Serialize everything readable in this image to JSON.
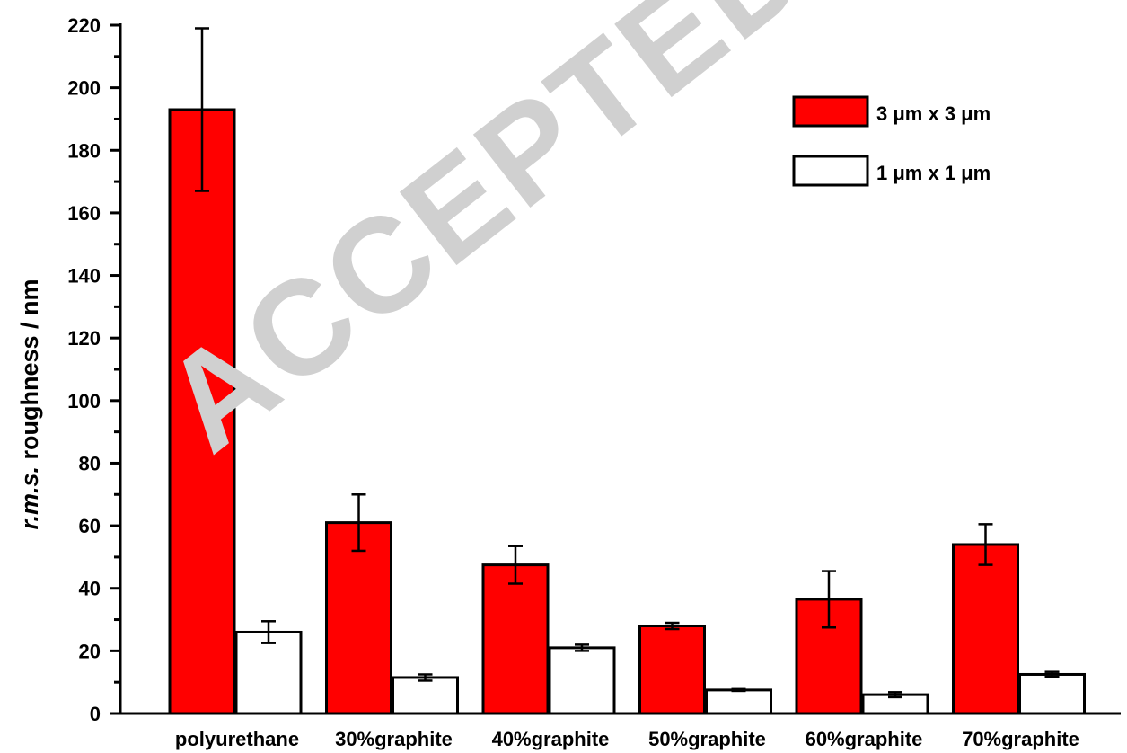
{
  "chart_data": {
    "type": "bar",
    "categories": [
      "polyurethane",
      "30%graphite",
      "40%graphite",
      "50%graphite",
      "60%graphite",
      "70%graphite"
    ],
    "series": [
      {
        "name": "3 μm x 3 μm",
        "values": [
          193,
          61,
          47.5,
          28,
          36.5,
          54
        ],
        "errors": [
          26,
          9,
          6,
          1,
          9,
          6.5
        ],
        "color": "#ff0000"
      },
      {
        "name": "1 μm x 1 μm",
        "values": [
          26,
          11.5,
          21,
          7.5,
          6,
          12.5
        ],
        "errors": [
          3.5,
          1,
          1,
          0.3,
          0.8,
          0.8
        ],
        "color": "#ffffff"
      }
    ],
    "ylabel_italic": "r.m.s.",
    "ylabel_rest": " roughness / nm",
    "xlabel": "",
    "ylim": [
      0,
      220
    ],
    "yticks": [
      0,
      20,
      40,
      60,
      80,
      100,
      120,
      140,
      160,
      180,
      200,
      220
    ],
    "legend_position": "top-right",
    "grid": false
  },
  "watermark": "ACCEPTED MANUSCRIPT"
}
